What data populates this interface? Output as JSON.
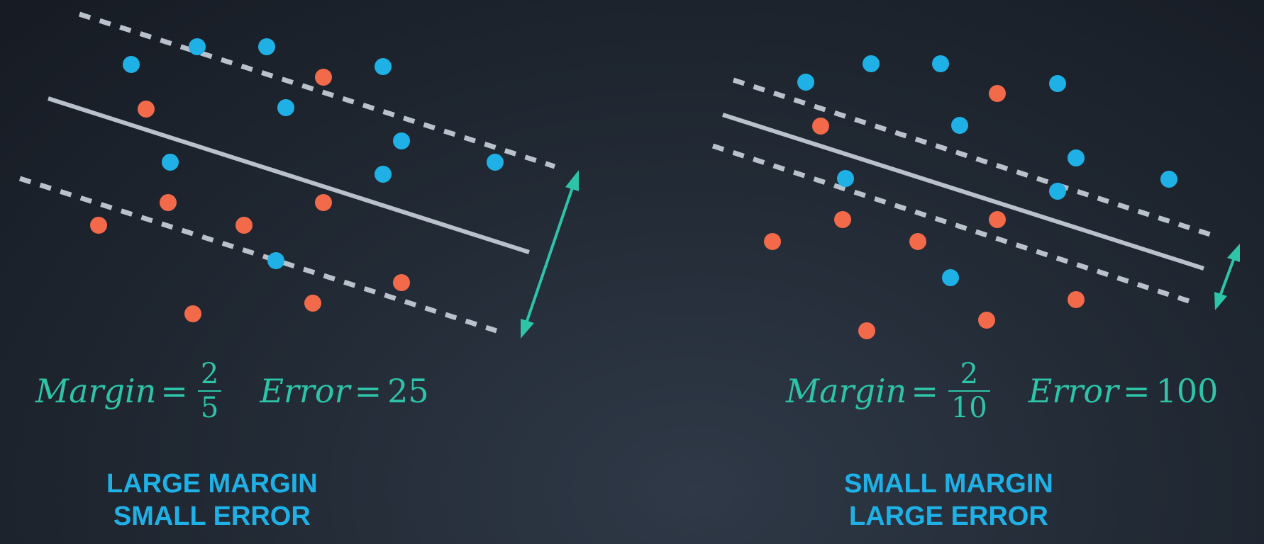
{
  "colors": {
    "blue_point": "#1fb1e6",
    "red_point": "#f26a4a",
    "line": "#b9c2cc",
    "arrow": "#2ec4a8",
    "text_teal": "#2ec4a8",
    "caption_blue": "#1fb1e6"
  },
  "left": {
    "formula": {
      "margin_word": "Margin",
      "margin_num": "2",
      "margin_den": "5",
      "error_word": "Error",
      "error_value": "25"
    },
    "caption": {
      "line1": "LARGE MARGIN",
      "line2": "SMALL ERROR"
    }
  },
  "right": {
    "formula": {
      "margin_word": "Margin",
      "margin_num": "2",
      "margin_den": "10",
      "error_word": "Error",
      "error_value": "100"
    },
    "caption": {
      "line1": "SMALL MARGIN",
      "line2": "LARGE ERROR"
    }
  },
  "equals": "="
}
